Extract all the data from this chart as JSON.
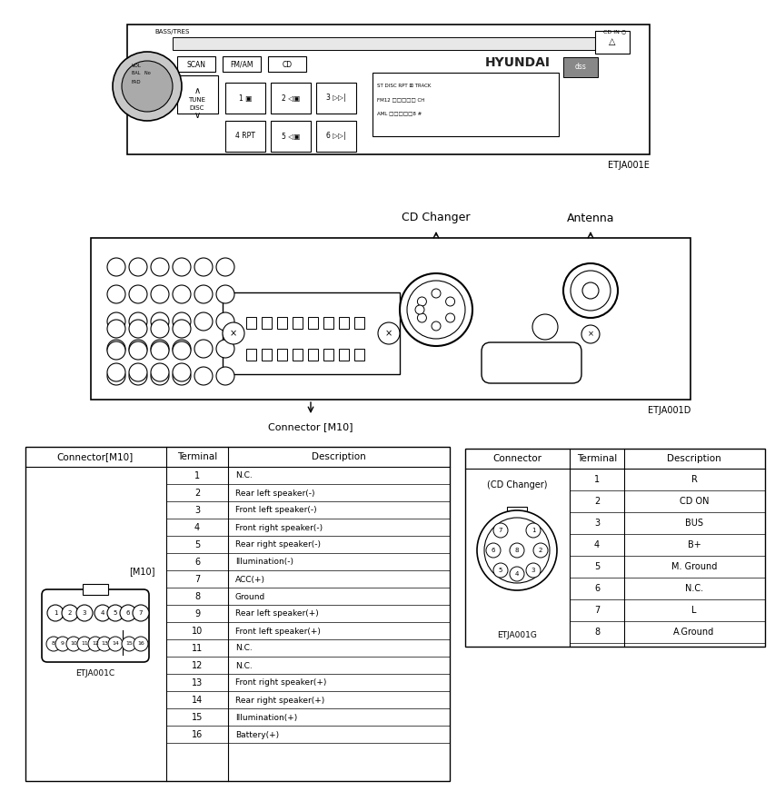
{
  "bg_color": "#ffffff",
  "label_etja001e": "ETJA001E",
  "label_etja001d": "ETJA001D",
  "label_etja001c": "ETJA001C",
  "label_etja001g": "ETJA001G",
  "cd_changer_label": "CD Changer",
  "antenna_label": "Antenna",
  "connector_m10_label": "Connector [M10]",
  "table1_headers": [
    "Connector[M10]",
    "Terminal",
    "Description"
  ],
  "table1_terminals": [
    1,
    2,
    3,
    4,
    5,
    6,
    7,
    8,
    9,
    10,
    11,
    12,
    13,
    14,
    15,
    16
  ],
  "table1_descriptions": [
    "N.C.",
    "Rear left speaker(-)",
    "Front left speaker(-)",
    "Front right speaker(-)",
    "Rear right speaker(-)",
    "Illumination(-)",
    "ACC(+)",
    "Ground",
    "Rear left speaker(+)",
    "Front left speaker(+)",
    "N.C.",
    "N.C.",
    "Front right speaker(+)",
    "Rear right speaker(+)",
    "Illumination(+)",
    "Battery(+)"
  ],
  "table2_headers": [
    "Connector",
    "Terminal",
    "Description"
  ],
  "table2_connector_label": "(CD Changer)",
  "table2_terminals": [
    1,
    2,
    3,
    4,
    5,
    6,
    7,
    8
  ],
  "table2_descriptions": [
    "R",
    "CD ON",
    "BUS",
    "B+",
    "M. Ground",
    "N.C.",
    "L",
    "A.Ground"
  ]
}
